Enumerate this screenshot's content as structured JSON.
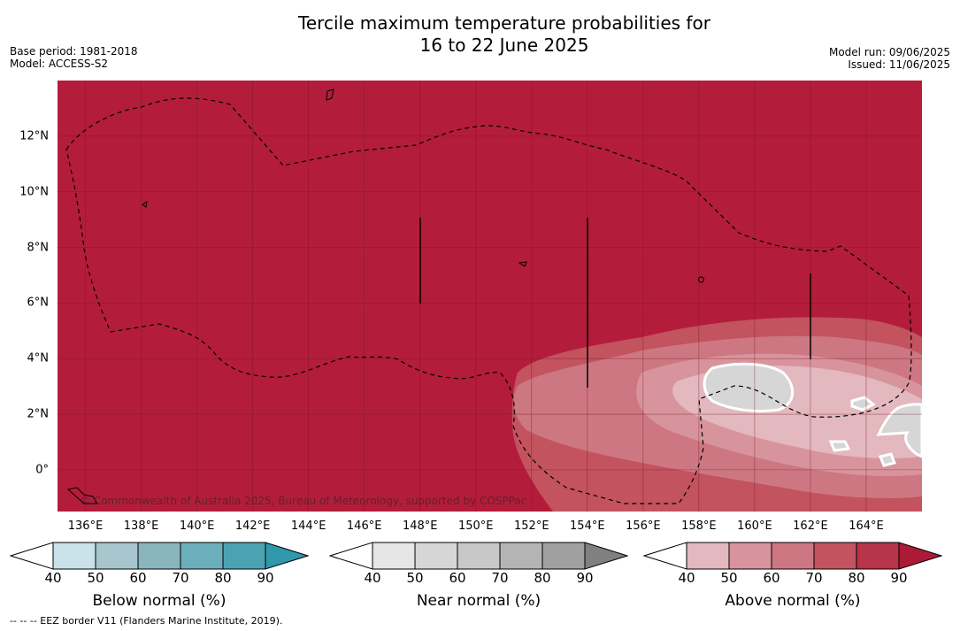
{
  "title_line1": "Tercile maximum temperature probabilities for",
  "title_line2": "16 to 22 June 2025",
  "base_period": "Base period: 1981-2018",
  "model": "Model: ACCESS-S2",
  "model_run": "Model run: 09/06/2025",
  "issued": "Issued: 11/06/2025",
  "copyright": "© Commonwealth of Australia 2025, Bureau of Meteorology, supported by COSPPac",
  "footer": "--  --  -- EEZ border V11 (Flanders Marine Institute, 2019).",
  "map": {
    "lon_range": [
      135,
      166
    ],
    "lat_range": [
      -1.5,
      14
    ],
    "x_ticks": [
      "136°E",
      "138°E",
      "140°E",
      "142°E",
      "144°E",
      "146°E",
      "148°E",
      "150°E",
      "152°E",
      "154°E",
      "156°E",
      "158°E",
      "160°E",
      "162°E",
      "164°E"
    ],
    "y_ticks": [
      "12°N",
      "10°N",
      "8°N",
      "6°N",
      "4°N",
      "2°N",
      "0°"
    ],
    "background_color": "#b31d3b",
    "gridlines": true
  },
  "colorbars": [
    {
      "label": "Below normal (%)",
      "ticks": [
        "40",
        "50",
        "60",
        "70",
        "80",
        "90"
      ],
      "colors": [
        "#ffffff",
        "#c9e1e8",
        "#a7c5cc",
        "#8ab5bf",
        "#6caebc",
        "#4aa2b2",
        "#2f98ab"
      ]
    },
    {
      "label": "Near normal (%)",
      "ticks": [
        "40",
        "50",
        "60",
        "70",
        "80",
        "90"
      ],
      "colors": [
        "#ffffff",
        "#e6e6e6",
        "#d6d6d6",
        "#c8c8c8",
        "#b4b4b4",
        "#a0a0a0",
        "#808080"
      ]
    },
    {
      "label": "Above normal (%)",
      "ticks": [
        "40",
        "50",
        "60",
        "70",
        "80",
        "90"
      ],
      "colors": [
        "#ffffff",
        "#e3b8bf",
        "#d8949c",
        "#cd7782",
        "#c2535f",
        "#b83448",
        "#ac1a38"
      ]
    }
  ]
}
